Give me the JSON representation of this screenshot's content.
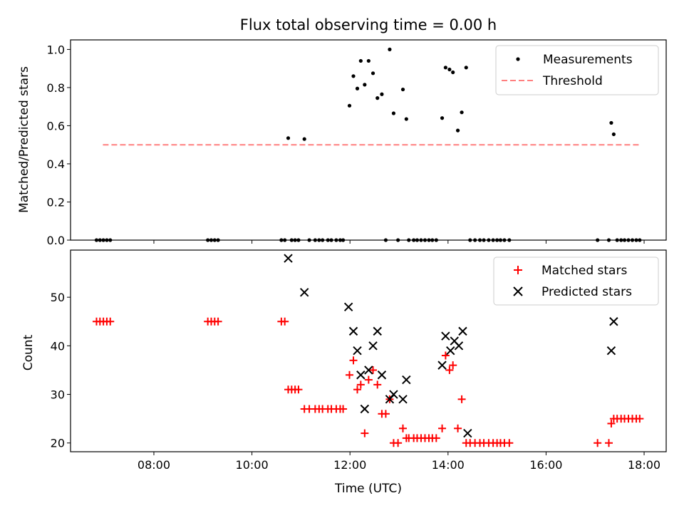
{
  "chart_data": [
    {
      "type": "scatter",
      "title": "Flux total observing time = 0.00 h",
      "xlabel": "",
      "ylabel": "Matched/Predicted stars",
      "xlim": [
        6.3,
        18.45
      ],
      "ylim": [
        0.0,
        1.05
      ],
      "yticks": [
        0.0,
        0.2,
        0.4,
        0.6,
        0.8,
        1.0
      ],
      "ytick_labels": [
        "0.0",
        "0.2",
        "0.4",
        "0.6",
        "0.8",
        "1.0"
      ],
      "legend_position": "top-right",
      "grid": false,
      "series": [
        {
          "name": "Measurements",
          "marker": "dot",
          "color": "#000000",
          "x": [
            6.83,
            6.9,
            6.97,
            7.04,
            7.11,
            9.1,
            9.17,
            9.24,
            9.31,
            10.6,
            10.67,
            10.74,
            10.81,
            10.88,
            10.95,
            11.07,
            11.17,
            11.29,
            11.37,
            11.44,
            11.55,
            11.62,
            11.72,
            11.8,
            11.86,
            11.99,
            12.07,
            12.15,
            12.22,
            12.3,
            12.38,
            12.47,
            12.56,
            12.65,
            12.73,
            12.81,
            12.89,
            12.98,
            13.08,
            13.15,
            13.2,
            13.3,
            13.37,
            13.45,
            13.53,
            13.61,
            13.68,
            13.76,
            13.88,
            13.95,
            14.03,
            14.1,
            14.2,
            14.28,
            14.37,
            14.45,
            14.55,
            14.65,
            14.73,
            14.83,
            14.92,
            15.0,
            15.07,
            15.15,
            15.25,
            17.05,
            17.28,
            17.33,
            17.38,
            17.45,
            17.53,
            17.6,
            17.68,
            17.76,
            17.84,
            17.91
          ],
          "y": [
            0,
            0,
            0,
            0,
            0,
            0,
            0,
            0,
            0,
            0,
            0,
            0.535,
            0,
            0,
            0,
            0.53,
            0,
            0,
            0,
            0,
            0,
            0,
            0,
            0,
            0,
            0.705,
            0.86,
            0.795,
            0.94,
            0.815,
            0.94,
            0.875,
            0.745,
            0.765,
            0,
            1.0,
            0.665,
            0,
            0.79,
            0.635,
            0,
            0,
            0,
            0,
            0,
            0,
            0,
            0,
            0.64,
            0.905,
            0.895,
            0.88,
            0.575,
            0.67,
            0.905,
            0,
            0,
            0,
            0,
            0,
            0,
            0,
            0,
            0,
            0,
            0,
            0,
            0.615,
            0.555,
            0,
            0,
            0,
            0,
            0,
            0,
            0
          ]
        },
        {
          "name": "Threshold",
          "marker": "dashed-line",
          "color": "#ff7f7f",
          "x": [
            6.96,
            17.91
          ],
          "y": [
            0.5,
            0.5
          ]
        }
      ]
    },
    {
      "type": "scatter",
      "title": "",
      "xlabel": "Time (UTC)",
      "ylabel": "Count",
      "xlim": [
        6.3,
        18.45
      ],
      "ylim": [
        18.2,
        59.7
      ],
      "xticks": [
        8,
        10,
        12,
        14,
        16,
        18
      ],
      "xtick_labels": [
        "08:00",
        "10:00",
        "12:00",
        "14:00",
        "16:00",
        "18:00"
      ],
      "yticks": [
        20,
        30,
        40,
        50
      ],
      "ytick_labels": [
        "20",
        "30",
        "40",
        "50"
      ],
      "legend_position": "top-right",
      "grid": false,
      "series": [
        {
          "name": "Matched stars",
          "marker": "plus",
          "color": "#ff0000",
          "x": [
            6.83,
            6.9,
            6.97,
            7.04,
            7.11,
            9.1,
            9.17,
            9.24,
            9.31,
            10.6,
            10.67,
            10.74,
            10.81,
            10.88,
            10.95,
            11.07,
            11.17,
            11.29,
            11.37,
            11.44,
            11.55,
            11.62,
            11.72,
            11.8,
            11.86,
            11.99,
            12.07,
            12.15,
            12.22,
            12.3,
            12.38,
            12.47,
            12.56,
            12.65,
            12.73,
            12.81,
            12.89,
            12.98,
            13.08,
            13.15,
            13.2,
            13.3,
            13.37,
            13.45,
            13.53,
            13.61,
            13.68,
            13.76,
            13.88,
            13.95,
            14.03,
            14.1,
            14.2,
            14.28,
            14.37,
            14.45,
            14.55,
            14.65,
            14.73,
            14.83,
            14.92,
            15.0,
            15.07,
            15.15,
            15.25,
            17.05,
            17.28,
            17.33,
            17.38,
            17.45,
            17.53,
            17.6,
            17.68,
            17.76,
            17.84,
            17.91
          ],
          "y": [
            45,
            45,
            45,
            45,
            45,
            45,
            45,
            45,
            45,
            45,
            45,
            31,
            31,
            31,
            31,
            27,
            27,
            27,
            27,
            27,
            27,
            27,
            27,
            27,
            27,
            34,
            37,
            31,
            32,
            22,
            33,
            35,
            32,
            26,
            26,
            29,
            20,
            20,
            23,
            21,
            21,
            21,
            21,
            21,
            21,
            21,
            21,
            21,
            23,
            38,
            35,
            36,
            23,
            29,
            20,
            20,
            20,
            20,
            20,
            20,
            20,
            20,
            20,
            20,
            20,
            20,
            20,
            24,
            25,
            25,
            25,
            25,
            25,
            25,
            25,
            25
          ]
        },
        {
          "name": "Predicted stars",
          "marker": "x",
          "color": "#000000",
          "x": [
            10.74,
            11.07,
            11.97,
            12.07,
            12.15,
            12.22,
            12.3,
            12.38,
            12.47,
            12.56,
            12.65,
            12.81,
            12.89,
            13.08,
            13.15,
            13.88,
            13.95,
            14.05,
            14.13,
            14.22,
            14.3,
            14.4,
            17.33,
            17.38
          ],
          "y": [
            58,
            51,
            48,
            43,
            39,
            34,
            27,
            35,
            40,
            43,
            34,
            29,
            30,
            29,
            33,
            36,
            42,
            39,
            41,
            40,
            43,
            22,
            39,
            45
          ]
        }
      ]
    }
  ]
}
